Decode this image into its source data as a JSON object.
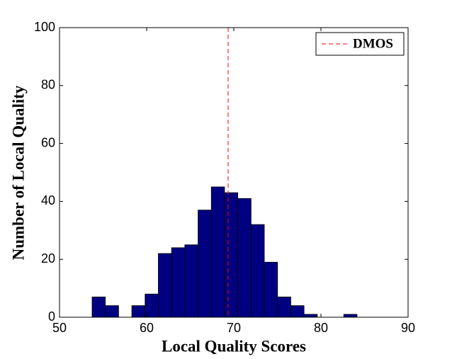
{
  "chart_data": {
    "type": "histogram",
    "xlabel": "Local Quality Scores",
    "ylabel": "Number of Local Quality",
    "bins": [
      53.74,
      55.26,
      56.78,
      58.3,
      59.82,
      61.34,
      62.86,
      64.38,
      65.9,
      67.42,
      68.94,
      70.46,
      71.98,
      73.5,
      75.02,
      76.54,
      78.06,
      79.58,
      81.1,
      82.62,
      84.14
    ],
    "values": [
      7,
      4,
      0,
      4,
      8,
      22,
      24,
      25,
      37,
      45,
      43,
      41,
      32,
      19,
      7,
      4,
      1,
      0,
      0,
      1
    ],
    "color": "#000080",
    "xlim": [
      50,
      90
    ],
    "xticks": [
      50,
      60,
      70,
      80,
      90
    ],
    "ylim": [
      0,
      100
    ],
    "yticks": [
      0,
      20,
      40,
      60,
      80,
      100
    ],
    "reference_line": {
      "name": "DMOS",
      "x": 69.35,
      "color": "#ff0000"
    },
    "legend": "upper right"
  }
}
